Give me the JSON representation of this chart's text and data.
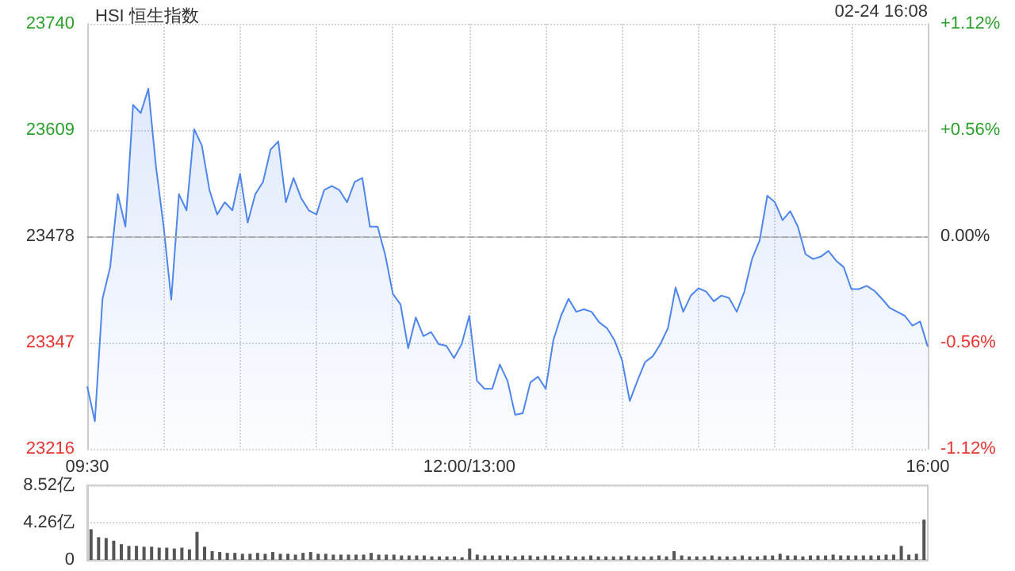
{
  "chart_data": [
    {
      "type": "area",
      "title": "HSI 恒生指数",
      "annotations": [
        "02-24 16:08"
      ],
      "categories": [
        "09:30",
        null,
        null,
        null,
        null,
        null,
        null,
        null,
        null,
        null,
        null,
        null,
        null,
        null,
        null,
        null,
        null,
        null,
        null,
        null,
        null,
        null,
        null,
        null,
        null,
        null,
        null,
        null,
        null,
        null,
        null,
        null,
        null,
        null,
        null,
        null,
        null,
        null,
        null,
        null,
        null,
        null,
        null,
        null,
        null,
        null,
        null,
        null,
        null,
        null,
        "12:00/13:00",
        null,
        null,
        null,
        null,
        null,
        null,
        null,
        null,
        null,
        null,
        null,
        null,
        null,
        null,
        null,
        null,
        null,
        null,
        null,
        null,
        null,
        null,
        null,
        null,
        null,
        null,
        null,
        null,
        null,
        null,
        null,
        null,
        null,
        null,
        null,
        null,
        null,
        null,
        null,
        null,
        null,
        null,
        null,
        null,
        null,
        null,
        null,
        null,
        null,
        null,
        null,
        null,
        null,
        null,
        null,
        null,
        null,
        null,
        null,
        "16:00"
      ],
      "series": [
        {
          "color": "#4f86ec",
          "values": [
            23293,
            23250,
            23401,
            23440,
            23530,
            23490,
            23640,
            23630,
            23660,
            23564,
            23490,
            23400,
            23530,
            23510,
            23610,
            23590,
            23535,
            23505,
            23520,
            23510,
            23555,
            23495,
            23530,
            23545,
            23585,
            23595,
            23520,
            23550,
            23525,
            23510,
            23505,
            23535,
            23540,
            23535,
            23520,
            23545,
            23550,
            23490,
            23490,
            23455,
            23407,
            23394,
            23340,
            23378,
            23355,
            23360,
            23345,
            23343,
            23328,
            23345,
            23380,
            23300,
            23290,
            23290,
            23320,
            23300,
            23258,
            23260,
            23298,
            23305,
            23290,
            23350,
            23380,
            23401,
            23385,
            23388,
            23385,
            23372,
            23365,
            23350,
            23325,
            23275,
            23300,
            23323,
            23330,
            23345,
            23365,
            23415,
            23385,
            23405,
            23414,
            23410,
            23398,
            23405,
            23402,
            23385,
            23410,
            23450,
            23473,
            23528,
            23520,
            23498,
            23509,
            23490,
            23456,
            23450,
            23453,
            23460,
            23448,
            23440,
            23413,
            23413,
            23417,
            23411,
            23401,
            23390,
            23385,
            23380,
            23368,
            23373,
            23342
          ]
        }
      ],
      "ylim": [
        23216,
        23740
      ],
      "yticks": [
        23216,
        23347,
        23478,
        23609,
        23740
      ],
      "y2lim": [
        -1.12,
        1.12
      ],
      "y2ticks": [
        {
          "value": -1.12,
          "label": "-1.12%"
        },
        {
          "value": -0.56,
          "label": "-0.56%"
        },
        {
          "value": 0,
          "label": "0.00%"
        },
        {
          "value": 0.56,
          "label": "+0.56%"
        },
        {
          "value": 1.12,
          "label": "+1.12%"
        }
      ],
      "ref_lines": [
        {
          "axis": "y",
          "value": 23478,
          "color": "#aaaaaa",
          "line_style": "dashed"
        }
      ],
      "grid": true,
      "marker": "none"
    },
    {
      "type": "bar",
      "categories": [
        null,
        null,
        null,
        null,
        null,
        null,
        null,
        null,
        null,
        null,
        null,
        null,
        null,
        null,
        null,
        null,
        null,
        null,
        null,
        null,
        null,
        null,
        null,
        null,
        null,
        null,
        null,
        null,
        null,
        null,
        null,
        null,
        null,
        null,
        null,
        null,
        null,
        null,
        null,
        null,
        null,
        null,
        null,
        null,
        null,
        null,
        null,
        null,
        null,
        null,
        null,
        null,
        null,
        null,
        null,
        null,
        null,
        null,
        null,
        null,
        null,
        null,
        null,
        null,
        null,
        null,
        null,
        null,
        null,
        null,
        null,
        null,
        null,
        null,
        null,
        null,
        null,
        null,
        null,
        null,
        null,
        null,
        null,
        null,
        null,
        null,
        null,
        null,
        null,
        null,
        null,
        null,
        null,
        null,
        null,
        null,
        null,
        null,
        null,
        null,
        null,
        null,
        null,
        null,
        null,
        null,
        null,
        null,
        null,
        null,
        null
      ],
      "series": [
        {
          "color": "#555555",
          "values": [
            3.5,
            2.6,
            2.5,
            2.2,
            1.8,
            1.6,
            1.6,
            1.5,
            1.5,
            1.4,
            1.4,
            1.3,
            1.4,
            1.2,
            3.2,
            1.5,
            1.0,
            0.9,
            0.8,
            0.8,
            0.7,
            0.7,
            0.8,
            0.7,
            0.9,
            0.7,
            0.7,
            0.6,
            0.8,
            0.9,
            0.7,
            0.7,
            0.6,
            0.6,
            0.6,
            0.6,
            0.6,
            0.8,
            0.6,
            0.6,
            0.6,
            0.5,
            0.5,
            0.5,
            0.5,
            0.4,
            0.4,
            0.4,
            0.4,
            0.3,
            1.3,
            0.6,
            0.5,
            0.5,
            0.5,
            0.5,
            0.4,
            0.5,
            0.5,
            0.4,
            0.5,
            0.5,
            0.4,
            0.5,
            0.4,
            0.4,
            0.5,
            0.4,
            0.4,
            0.4,
            0.4,
            0.5,
            0.4,
            0.4,
            0.4,
            0.5,
            0.4,
            1.0,
            0.5,
            0.4,
            0.4,
            0.4,
            0.5,
            0.4,
            0.4,
            0.4,
            0.5,
            0.4,
            0.4,
            0.5,
            0.5,
            0.7,
            0.5,
            0.5,
            0.4,
            0.5,
            0.5,
            0.5,
            0.6,
            0.5,
            0.5,
            0.5,
            0.5,
            0.5,
            0.5,
            0.6,
            0.6,
            1.6,
            0.6,
            0.7,
            4.6
          ]
        }
      ],
      "ylim": [
        0,
        8.52
      ],
      "yticks": [
        0,
        {
          "value": 4.26,
          "label": "4.26亿"
        },
        {
          "value": 8.52,
          "label": "8.52亿"
        }
      ],
      "grid": "y",
      "tick_labels": "y"
    }
  ]
}
